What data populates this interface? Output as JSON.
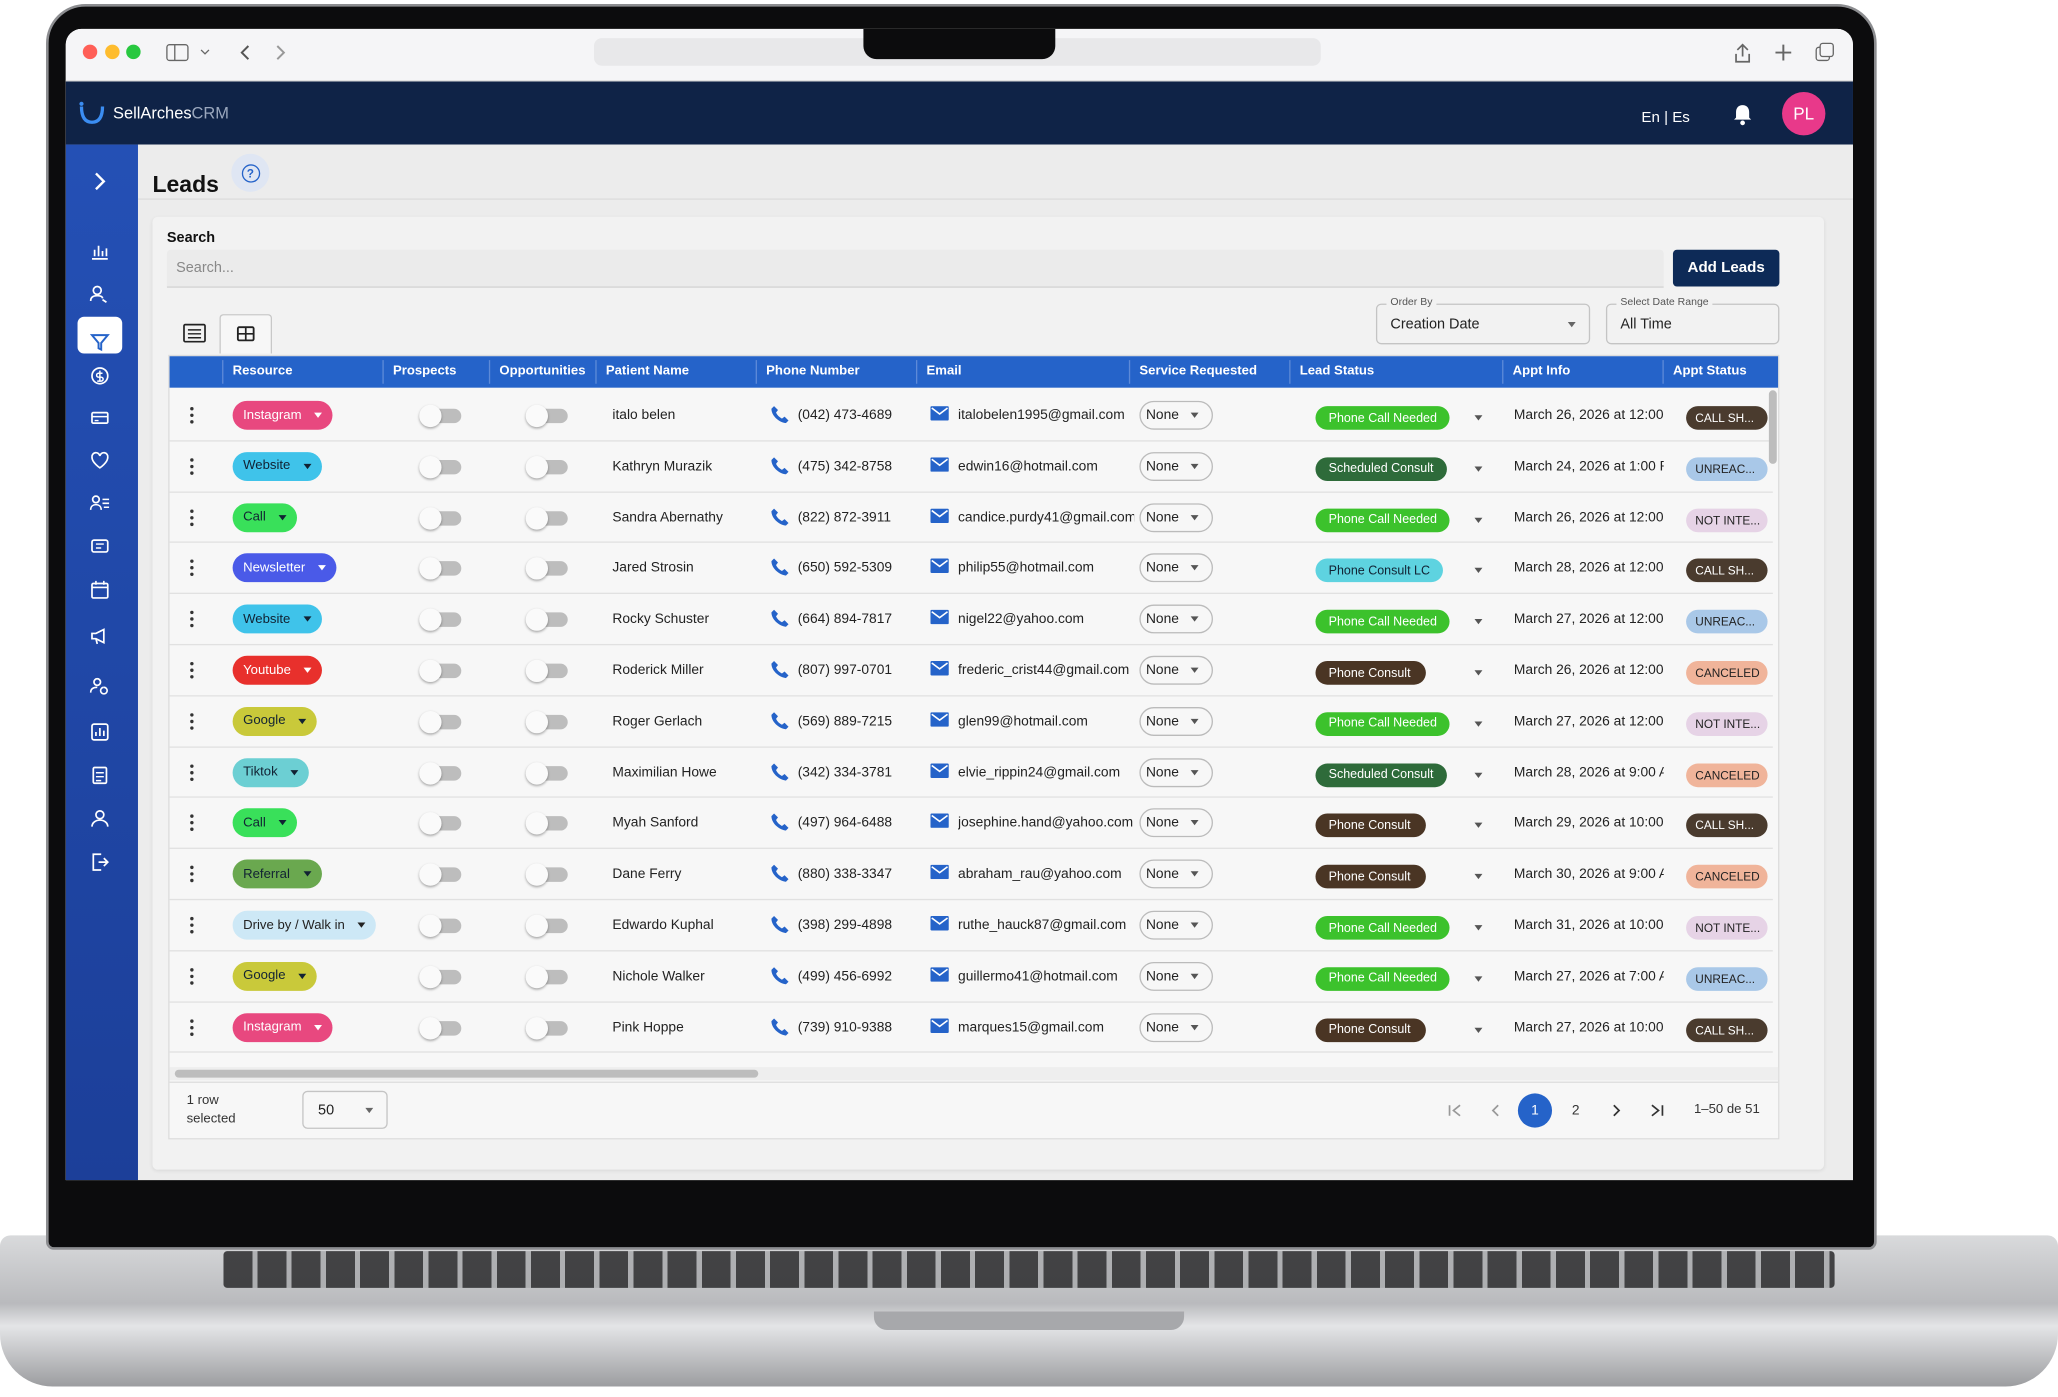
{
  "app": {
    "logo": "SellArches",
    "logo_suffix": "CRM",
    "language": "En | Es",
    "avatar": "PL"
  },
  "page": {
    "title": "Leads",
    "search_label": "Search",
    "search_placeholder": "Search...",
    "add_button": "Add Leads",
    "order_by_label": "Order By",
    "order_by_value": "Creation Date",
    "date_range_label": "Select Date Range",
    "date_range_value": "All Time"
  },
  "table": {
    "columns": [
      "Resource",
      "Prospects",
      "Opportunities",
      "Patient Name",
      "Phone Number",
      "Email",
      "Service Requested",
      "Lead Status",
      "Appt Info",
      "Appt Status"
    ],
    "rows": [
      {
        "resource": "Instagram",
        "resource_color": "#e8487f",
        "patient": "italo belen",
        "phone": "(042) 473-4689",
        "email": "italobelen1995@gmail.com",
        "service": "None",
        "lead_status": "Phone Call Needed",
        "lead_status_color": "#3cc22c",
        "appt_info": "March 26, 2026 at 12:00 .",
        "appt_status": "CALL SH...",
        "appt_status_color": "#4a3b2e"
      },
      {
        "resource": "Website",
        "resource_color": "#3fc3ea",
        "patient": "Kathryn Murazik",
        "phone": "(475) 342-8758",
        "email": "edwin16@hotmail.com",
        "service": "None",
        "lead_status": "Scheduled Consult",
        "lead_status_color": "#2e6b3a",
        "appt_info": "March 24, 2026 at 1:00 P",
        "appt_status": "UNREAC...",
        "appt_status_color": "#a9c8e8"
      },
      {
        "resource": "Call",
        "resource_color": "#39e05a",
        "patient": "Sandra Abernathy",
        "phone": "(822) 872-3911",
        "email": "candice.purdy41@gmail.com",
        "service": "None",
        "lead_status": "Phone Call Needed",
        "lead_status_color": "#3cc22c",
        "appt_info": "March 26, 2026 at 12:00 .",
        "appt_status": "NOT INTE...",
        "appt_status_color": "#e6d3e6"
      },
      {
        "resource": "Newsletter",
        "resource_color": "#4a5ae8",
        "patient": "Jared Strosin",
        "phone": "(650) 592-5309",
        "email": "philip55@hotmail.com",
        "service": "None",
        "lead_status": "Phone Consult LC",
        "lead_status_color": "#5ed3e0",
        "appt_info": "March 28, 2026 at 12:00 .",
        "appt_status": "CALL SH...",
        "appt_status_color": "#4a3b2e"
      },
      {
        "resource": "Website",
        "resource_color": "#3fc3ea",
        "patient": "Rocky Schuster",
        "phone": "(664) 894-7817",
        "email": "nigel22@yahoo.com",
        "service": "None",
        "lead_status": "Phone Call Needed",
        "lead_status_color": "#3cc22c",
        "appt_info": "March 27, 2026 at 12:00 .",
        "appt_status": "UNREAC...",
        "appt_status_color": "#a9c8e8"
      },
      {
        "resource": "Youtube",
        "resource_color": "#e8302c",
        "patient": "Roderick Miller",
        "phone": "(807) 997-0701",
        "email": "frederic_crist44@gmail.com",
        "service": "None",
        "lead_status": "Phone Consult",
        "lead_status_color": "#4a3524",
        "appt_info": "March 26, 2026 at 12:00 .",
        "appt_status": "CANCELED",
        "appt_status_color": "#f0b49a"
      },
      {
        "resource": "Google",
        "resource_color": "#c9c93a",
        "patient": "Roger Gerlach",
        "phone": "(569) 889-7215",
        "email": "glen99@hotmail.com",
        "service": "None",
        "lead_status": "Phone Call Needed",
        "lead_status_color": "#3cc22c",
        "appt_info": "March 27, 2026 at 12:00 .",
        "appt_status": "NOT INTE...",
        "appt_status_color": "#e6d3e6"
      },
      {
        "resource": "Tiktok",
        "resource_color": "#6ccfd3",
        "patient": "Maximilian Howe",
        "phone": "(342) 334-3781",
        "email": "elvie_rippin24@gmail.com",
        "service": "None",
        "lead_status": "Scheduled Consult",
        "lead_status_color": "#2e6b3a",
        "appt_info": "March 28, 2026 at 9:00 A",
        "appt_status": "CANCELED",
        "appt_status_color": "#f0b49a"
      },
      {
        "resource": "Call",
        "resource_color": "#39e05a",
        "patient": "Myah Sanford",
        "phone": "(497) 964-6488",
        "email": "josephine.hand@yahoo.com",
        "service": "None",
        "lead_status": "Phone Consult",
        "lead_status_color": "#4a3524",
        "appt_info": "March 29, 2026 at 10:00 .",
        "appt_status": "CALL SH...",
        "appt_status_color": "#4a3b2e"
      },
      {
        "resource": "Referral",
        "resource_color": "#6aa84f",
        "patient": "Dane Ferry",
        "phone": "(880) 338-3347",
        "email": "abraham_rau@yahoo.com",
        "service": "None",
        "lead_status": "Phone Consult",
        "lead_status_color": "#4a3524",
        "appt_info": "March 30, 2026 at 9:00 A",
        "appt_status": "CANCELED",
        "appt_status_color": "#f0b49a"
      },
      {
        "resource": "Drive by / Walk in",
        "resource_color": "#cde8f6",
        "patient": "Edwardo Kuphal",
        "phone": "(398) 299-4898",
        "email": "ruthe_hauck87@gmail.com",
        "service": "None",
        "lead_status": "Phone Call Needed",
        "lead_status_color": "#3cc22c",
        "appt_info": "March 31, 2026 at 10:00 .",
        "appt_status": "NOT INTE...",
        "appt_status_color": "#e6d3e6"
      },
      {
        "resource": "Google",
        "resource_color": "#c9c93a",
        "patient": "Nichole Walker",
        "phone": "(499) 456-6992",
        "email": "guillermo41@hotmail.com",
        "service": "None",
        "lead_status": "Phone Call Needed",
        "lead_status_color": "#3cc22c",
        "appt_info": "March 27, 2026 at 7:00 A",
        "appt_status": "UNREAC...",
        "appt_status_color": "#a9c8e8"
      },
      {
        "resource": "Instagram",
        "resource_color": "#e8487f",
        "patient": "Pink Hoppe",
        "phone": "(739) 910-9388",
        "email": "marques15@gmail.com",
        "service": "None",
        "lead_status": "Phone Consult",
        "lead_status_color": "#4a3524",
        "appt_info": "March 27, 2026 at 10:00 .",
        "appt_status": "CALL SH...",
        "appt_status_color": "#4a3b2e"
      }
    ]
  },
  "footer": {
    "selected": "1 row selected",
    "page_size": "50",
    "pages": [
      "1",
      "2"
    ],
    "range": "1–50 de 51"
  }
}
